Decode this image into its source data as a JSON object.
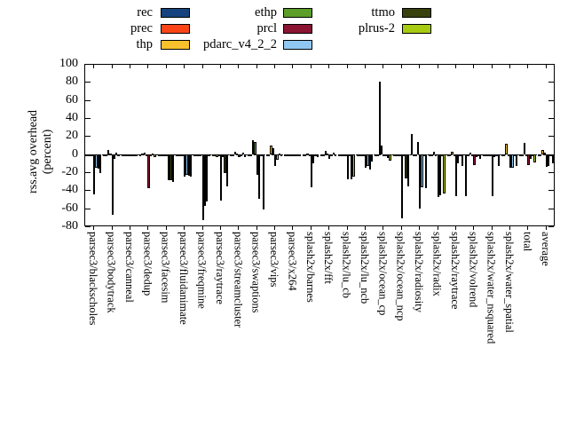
{
  "chart_data": {
    "type": "bar",
    "title": "",
    "ylabel_line1": "rss.avg overhead",
    "ylabel_line2": "(percent)",
    "xlabel": "",
    "ylim": [
      -80,
      100
    ],
    "yticks": [
      100,
      80,
      60,
      40,
      20,
      0,
      -20,
      -40,
      -60,
      -80
    ],
    "grid": "dashed-zero-line-only",
    "legend_position": "top-center-3-columns",
    "legend_columns": [
      [
        "rec",
        "prec",
        "thp"
      ],
      [
        "ethp",
        "prcl",
        "pdarc_v4_2_2"
      ],
      [
        "ttmo",
        "plrus-2"
      ]
    ],
    "categories": [
      "parsec3/blackscholes",
      "parsec3/bodytrack",
      "parsec3/canneal",
      "parsec3/dedup",
      "parsec3/facesim",
      "parsec3/fluidanimate",
      "parsec3/freqmine",
      "parsec3/raytrace",
      "parsec3/streamcluster",
      "parsec3/swaptions",
      "parsec3/vips",
      "parsec3/x264",
      "splash2x/barnes",
      "splash2x/fft",
      "splash2x/lu_cb",
      "splash2x/lu_ncb",
      "splash2x/ocean_cp",
      "splash2x/ocean_ncp",
      "splash2x/radiosity",
      "splash2x/radix",
      "splash2x/raytrace",
      "splash2x/volrend",
      "splash2x/water_nsquared",
      "splash2x/water_spatial",
      "total",
      "average"
    ],
    "series": [
      {
        "name": "rec",
        "color": "#16437e",
        "values": [
          -2,
          -2,
          -1,
          -2,
          -2,
          -2,
          -2,
          -2,
          -1,
          -2,
          -1,
          -1,
          -2,
          -1,
          -2,
          -2,
          -2,
          -2,
          22,
          -2,
          -2,
          -47,
          -2,
          -2,
          -2,
          -2
        ]
      },
      {
        "name": "prec",
        "color": "#fb4517",
        "values": [
          -2,
          -1,
          -1,
          1,
          -2,
          -2,
          -2,
          -2,
          -1,
          -2,
          -1,
          -1,
          -1,
          -1,
          -2,
          -2,
          -2,
          -2,
          -2,
          -2,
          -1,
          -2,
          -2,
          -2,
          -1,
          -1
        ]
      },
      {
        "name": "thp",
        "color": "#f6c12c",
        "values": [
          -2,
          5,
          -2,
          2,
          -2,
          -2,
          -2,
          -3,
          3,
          15,
          10,
          -1,
          1,
          4,
          -2,
          -2,
          80,
          -2,
          -2,
          3,
          3,
          2,
          -2,
          11,
          12,
          5
        ]
      },
      {
        "name": "ethp",
        "color": "#5c9e27",
        "values": [
          -2,
          1,
          -1,
          -1,
          -2,
          -2,
          -2,
          -2,
          1,
          13,
          7,
          -1,
          -1,
          1,
          -2,
          -2,
          10,
          -2,
          13,
          -2,
          -2,
          -2,
          -2,
          -2,
          -2,
          2
        ]
      },
      {
        "name": "prcl",
        "color": "#8a1432",
        "values": [
          -45,
          -67,
          -2,
          -38,
          -2,
          -25,
          -73,
          -51,
          -3,
          -23,
          -13,
          -2,
          -37,
          -5,
          -28,
          -15,
          -2,
          -71,
          -60,
          -48,
          -47,
          -12,
          -47,
          -15,
          -12,
          -14
        ]
      },
      {
        "name": "pdarc_v4_2_2",
        "color": "#90c8f2",
        "values": [
          -15,
          -5,
          -1,
          -1,
          -29,
          -23,
          -57,
          -3,
          -2,
          -50,
          -6,
          -1,
          -10,
          -1,
          -2,
          -13,
          -2,
          -2,
          -37,
          -46,
          -10,
          -3,
          -3,
          -15,
          -5,
          -13
        ]
      },
      {
        "name": "ttmo",
        "color": "#38400d",
        "values": [
          -16,
          2,
          -1,
          1,
          -29,
          -24,
          -52,
          -21,
          2,
          -2,
          1,
          -1,
          -1,
          2,
          -28,
          -17,
          -4,
          -27,
          -2,
          -2,
          -2,
          -2,
          -2,
          -2,
          -2,
          -2
        ]
      },
      {
        "name": "plrus-2",
        "color": "#a7cb10",
        "values": [
          -21,
          -2,
          -2,
          -3,
          -31,
          -25,
          -2,
          -36,
          -3,
          -61,
          -2,
          -1,
          -3,
          -2,
          -25,
          -8,
          -7,
          -36,
          -38,
          -44,
          -13,
          -5,
          -13,
          -13,
          -9,
          -10
        ]
      }
    ]
  }
}
